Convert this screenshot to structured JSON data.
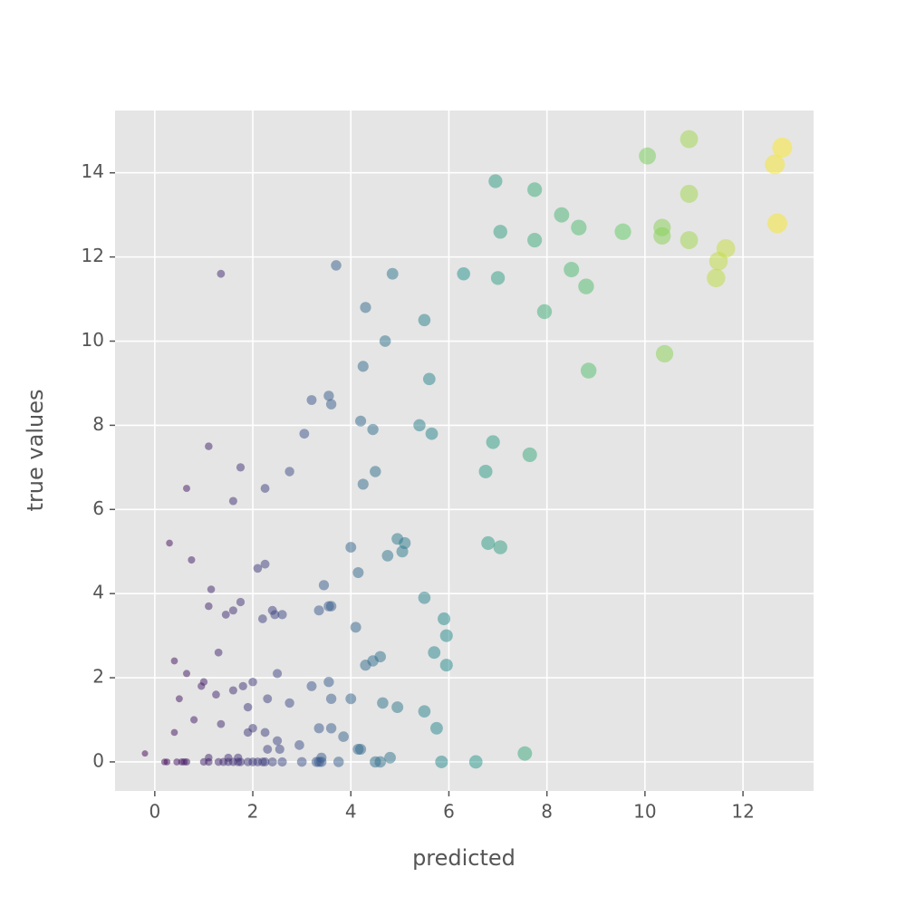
{
  "chart_data": {
    "type": "scatter",
    "x_label": "predicted",
    "y_label": "true values",
    "xlim": [
      -0.81,
      13.44
    ],
    "ylim": [
      -0.69,
      15.48
    ],
    "xticks": [
      0,
      2,
      4,
      6,
      8,
      10,
      12
    ],
    "yticks": [
      0,
      2,
      4,
      6,
      8,
      10,
      12,
      14
    ],
    "grid": true,
    "colormap": "viridis",
    "x": [
      -0.2,
      0.2,
      0.25,
      0.45,
      0.55,
      0.6,
      0.65,
      1.0,
      1.1,
      1.3,
      1.4,
      1.5,
      1.6,
      1.7,
      1.75,
      1.9,
      2.0,
      2.1,
      2.2,
      2.25,
      2.4,
      2.6,
      3.0,
      3.3,
      3.35,
      3.4,
      3.75,
      4.5,
      4.6,
      5.85,
      6.55,
      1.1,
      1.5,
      1.7,
      3.4,
      4.2,
      4.8,
      2.3,
      2.55,
      2.0,
      2.25,
      2.5,
      1.9,
      0.4,
      0.8,
      1.35,
      2.95,
      7.55,
      0.95,
      1.0,
      0.5,
      0.65,
      1.25,
      1.6,
      1.8,
      1.9,
      2.0,
      2.3,
      2.5,
      2.75,
      3.2,
      3.55,
      3.6,
      3.35,
      3.6,
      3.85,
      4.0,
      4.15,
      4.65,
      4.95,
      5.5,
      5.75,
      0.4,
      1.3,
      4.3,
      4.45,
      4.6,
      5.7,
      5.95,
      1.1,
      1.15,
      1.45,
      1.6,
      1.75,
      2.2,
      2.4,
      2.45,
      2.6,
      3.35,
      3.55,
      3.6,
      4.1,
      5.9,
      5.95,
      5.5,
      3.45,
      4.15,
      2.1,
      2.25,
      0.3,
      0.75,
      4.0,
      4.75,
      4.95,
      5.05,
      5.1,
      6.8,
      7.05,
      0.65,
      1.6,
      2.25,
      1.75,
      1.1,
      2.75,
      4.25,
      4.5,
      6.75,
      6.9,
      7.65,
      3.05,
      4.2,
      4.45,
      5.4,
      5.65,
      3.2,
      3.55,
      3.6,
      5.6,
      4.25,
      8.85,
      10.4,
      4.7,
      4.3,
      5.5,
      7.95,
      1.35,
      3.7,
      4.85,
      6.3,
      7.0,
      8.5,
      8.8,
      11.45,
      11.5,
      11.65,
      10.9,
      7.75,
      7.05,
      8.65,
      9.55,
      10.35,
      10.35,
      12.7,
      8.3,
      7.75,
      6.95,
      10.9,
      10.05,
      10.9,
      12.65,
      12.8
    ],
    "values": [
      0.2,
      0,
      0,
      0,
      0,
      0,
      0,
      0,
      0,
      0,
      0,
      0,
      0,
      0,
      0,
      0,
      0,
      0,
      0,
      0,
      0,
      0,
      0,
      0,
      0,
      0,
      0,
      0,
      0,
      0,
      0,
      0.1,
      0.1,
      0.1,
      0.1,
      0.3,
      0.1,
      0.3,
      0.3,
      0.8,
      0.7,
      0.5,
      0.7,
      0.7,
      1.0,
      0.9,
      0.4,
      0.2,
      1.8,
      1.9,
      1.5,
      2.1,
      1.6,
      1.7,
      1.8,
      1.3,
      1.9,
      1.5,
      2.1,
      1.4,
      1.8,
      1.9,
      1.5,
      0.8,
      0.8,
      0.6,
      1.5,
      0.3,
      1.4,
      1.3,
      1.2,
      0.8,
      2.4,
      2.6,
      2.3,
      2.4,
      2.5,
      2.6,
      2.3,
      3.7,
      4.1,
      3.5,
      3.6,
      3.8,
      3.4,
      3.6,
      3.5,
      3.5,
      3.6,
      3.7,
      3.7,
      3.2,
      3.4,
      3.0,
      3.9,
      4.2,
      4.5,
      4.6,
      4.7,
      5.2,
      4.8,
      5.1,
      4.9,
      5.3,
      5.0,
      5.2,
      5.2,
      5.1,
      6.5,
      6.2,
      6.5,
      7.0,
      7.5,
      6.9,
      6.6,
      6.9,
      6.9,
      7.6,
      7.3,
      7.8,
      8.1,
      7.9,
      8.0,
      7.8,
      8.6,
      8.7,
      8.5,
      9.1,
      9.4,
      9.3,
      9.7,
      10.0,
      10.8,
      10.5,
      10.7,
      11.6,
      11.8,
      11.6,
      11.6,
      11.5,
      11.7,
      11.3,
      11.5,
      11.9,
      12.2,
      12.4,
      12.4,
      12.6,
      12.7,
      12.6,
      12.7,
      12.5,
      12.8,
      13.0,
      13.6,
      13.8,
      13.5,
      14.4,
      14.8,
      14.2,
      14.6
    ]
  }
}
